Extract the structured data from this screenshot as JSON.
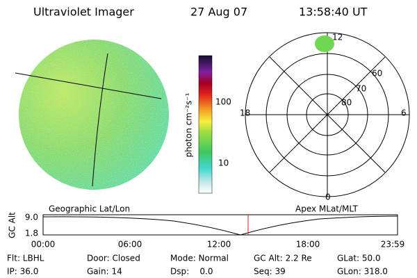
{
  "header": {
    "instrument": "Ultraviolet Imager",
    "date": "27 Aug 07",
    "time": "13:58:40 UT"
  },
  "colorbar": {
    "label": "photon cm⁻²s⁻¹",
    "ticks": [
      "100",
      "10"
    ]
  },
  "polar": {
    "mlt_labels": [
      "12",
      "18",
      "6",
      "0"
    ],
    "lat_labels": [
      "60",
      "70",
      "80"
    ]
  },
  "altitude_plot": {
    "left_title": "Geographic Lat/Lon",
    "right_title": "Apex MLat/MLT",
    "y_label": "GC Alt",
    "y_ticks": [
      "9.0",
      "1.8"
    ],
    "x_ticks": [
      "00:00",
      "06:00",
      "12:00",
      "18:00",
      "23:59"
    ]
  },
  "status": {
    "rows": [
      [
        "Flt: LBHL",
        "Door: Closed",
        "Mode: Normal",
        "GC Alt: 2.2 Re",
        "GLat: 50.0"
      ],
      [
        "IP: 36.0",
        "Gain: 14",
        "Dsp:    0.0",
        "Seq: 39",
        "GLon: 318.0"
      ]
    ]
  }
}
